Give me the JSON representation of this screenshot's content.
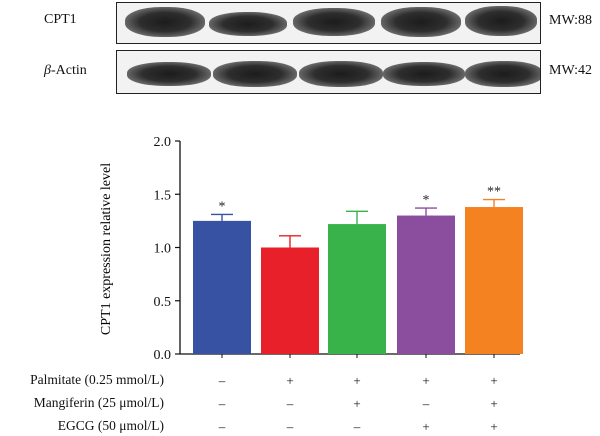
{
  "blots": [
    {
      "label": "CPT1",
      "mw": "MW:88"
    },
    {
      "label_prefix": "β",
      "label_suffix": "-Actin",
      "mw": "MW:42"
    }
  ],
  "chart_data": {
    "type": "bar",
    "ylabel": "CPT1 expression relative level",
    "ylim": [
      0,
      2.0
    ],
    "yticks": [
      "0.0",
      "0.5",
      "1.0",
      "1.5",
      "2.0"
    ],
    "grid": false,
    "values": [
      1.25,
      1.0,
      1.22,
      1.3,
      1.38
    ],
    "errors": [
      0.06,
      0.11,
      0.12,
      0.07,
      0.07
    ],
    "significance": [
      "*",
      "",
      "",
      "*",
      "**"
    ],
    "colors": [
      "#3752a2",
      "#e8202a",
      "#37b34a",
      "#8b4d9e",
      "#f58220"
    ]
  },
  "treatments": [
    {
      "label": "Palmitate (0.25 mmol/L)",
      "signs": [
        "–",
        "+",
        "+",
        "+",
        "+"
      ]
    },
    {
      "label": "Mangiferin (25 μmol/L)",
      "signs": [
        "–",
        "–",
        "+",
        "–",
        "+"
      ]
    },
    {
      "label": "EGCG (50 μmol/L)",
      "signs": [
        "–",
        "–",
        "–",
        "+",
        "+"
      ]
    }
  ]
}
